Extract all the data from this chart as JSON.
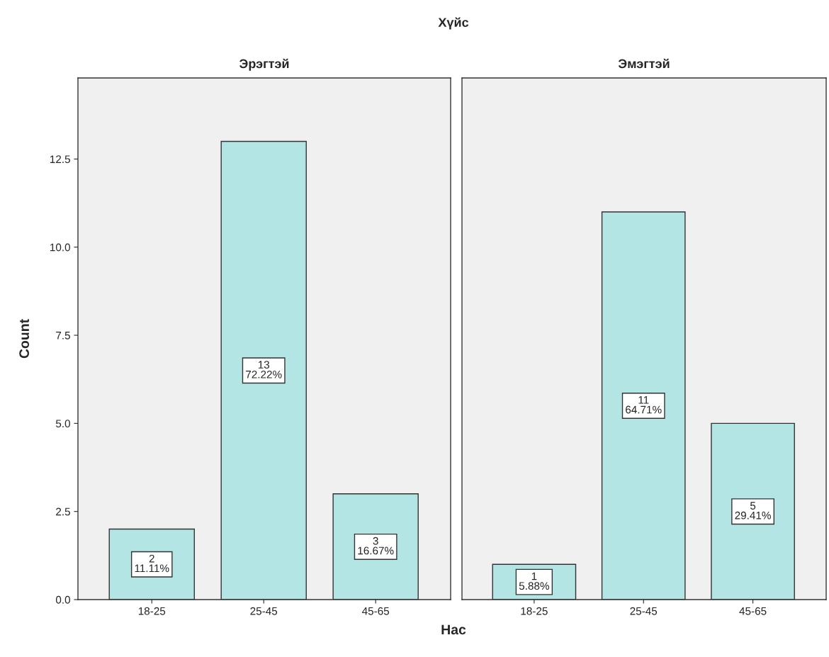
{
  "chart_data": [
    {
      "type": "bar",
      "title": "Эрэгтэй",
      "ylabel": "Count",
      "xlabel": "Нас",
      "annotations": [
        "Хүйс"
      ],
      "categories": [
        "18-25",
        "25-45",
        "45-65"
      ],
      "series": [
        {
          "color": "#b3e5e5",
          "values": [
            2,
            13,
            3
          ],
          "value_labels": [
            "2\n11.11%",
            "13\n72.22%",
            "3\n16.67%"
          ]
        }
      ],
      "ylim": [
        0,
        14.8
      ],
      "yticks": [
        {
          "value": 0,
          "label": "0.0"
        },
        {
          "value": 2.5,
          "label": "2.5"
        },
        {
          "value": 5,
          "label": "5.0"
        },
        {
          "value": 7.5,
          "label": "7.5"
        },
        {
          "value": 10,
          "label": "10.0"
        },
        {
          "value": 12.5,
          "label": "12.5"
        }
      ],
      "grid": false,
      "legend": false
    },
    {
      "type": "bar",
      "title": "Эмэгтэй",
      "categories": [
        "18-25",
        "25-45",
        "45-65"
      ],
      "series": [
        {
          "color": "#b3e5e5",
          "values": [
            1,
            11,
            5
          ],
          "value_labels": [
            "1\n5.88%",
            "11\n64.71%",
            "5\n29.41%"
          ]
        }
      ],
      "ylim": [
        0,
        14.8
      ],
      "tick_labels": "x",
      "grid": false,
      "legend": false
    }
  ]
}
